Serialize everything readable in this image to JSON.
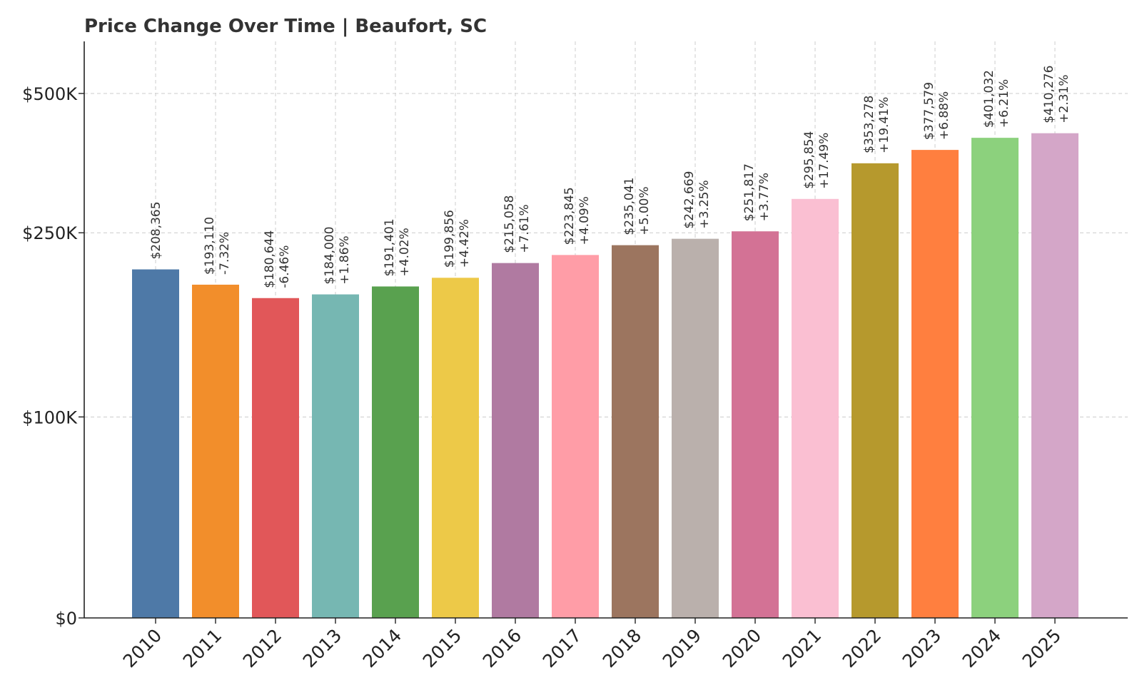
{
  "chart_data": {
    "type": "bar",
    "title": "Price Change Over Time | Beaufort, SC",
    "xlabel": "",
    "ylabel": "",
    "categories": [
      "2010",
      "2011",
      "2012",
      "2013",
      "2014",
      "2015",
      "2016",
      "2017",
      "2018",
      "2019",
      "2020",
      "2021",
      "2022",
      "2023",
      "2024",
      "2025"
    ],
    "values": [
      208365,
      193110,
      180644,
      184000,
      191401,
      199856,
      215058,
      223845,
      235041,
      242669,
      251817,
      295854,
      353278,
      377579,
      401032,
      410276
    ],
    "value_labels": [
      "$208,365",
      "$193,110",
      "$180,644",
      "$184,000",
      "$191,401",
      "$199,856",
      "$215,058",
      "$223,845",
      "$235,041",
      "$242,669",
      "$251,817",
      "$295,854",
      "$353,278",
      "$377,579",
      "$401,032",
      "$410,276"
    ],
    "change_labels": [
      "",
      "-7.32%",
      "-6.46%",
      "+1.86%",
      "+4.02%",
      "+4.42%",
      "+7.61%",
      "+4.09%",
      "+5.00%",
      "+3.25%",
      "+3.77%",
      "+17.49%",
      "+19.41%",
      "+6.88%",
      "+6.21%",
      "+2.31%"
    ],
    "colors": [
      "#4e79a7",
      "#f28e2b",
      "#e15759",
      "#76b7b2",
      "#59a14f",
      "#edc948",
      "#b07aa1",
      "#ff9da7",
      "#9c755f",
      "#bab0ac",
      "#d37295",
      "#fabfd2",
      "#b6992d",
      "#ff7f3f",
      "#8cd17d",
      "#d4a6c8"
    ],
    "yticks": [
      {
        "value": 0,
        "label": "$0"
      },
      {
        "value": 100000,
        "label": "$100K"
      },
      {
        "value": 250000,
        "label": "$250K"
      },
      {
        "value": 500000,
        "label": "$500K"
      }
    ],
    "ylim": [
      0,
      550000
    ],
    "grid": true,
    "legend": "none"
  }
}
